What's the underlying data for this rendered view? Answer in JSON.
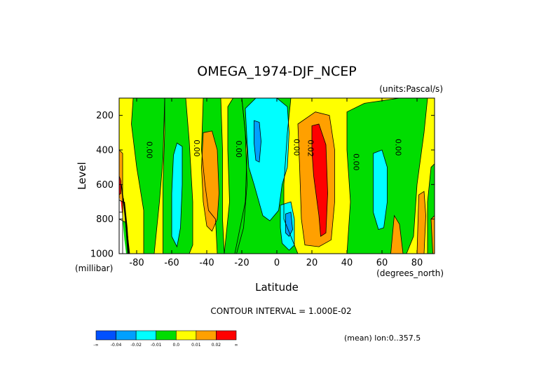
{
  "chart_data": {
    "type": "contour",
    "title": "OMEGA_1974-DJF_NCEP",
    "units_label": "(units:Pascal/s)",
    "xlabel": "Latitude",
    "ylabel": "Level",
    "x_unit_label": "(degrees_north)",
    "y_unit_label": "(millibar)",
    "xlim": [
      -90,
      90
    ],
    "ylim": [
      1000,
      100
    ],
    "x_ticks": [
      -80,
      -60,
      -40,
      -20,
      0,
      20,
      40,
      60,
      80
    ],
    "y_ticks": [
      200,
      400,
      600,
      800,
      1000
    ],
    "contour_interval_text": "CONTOUR INTERVAL = 1.000E-02",
    "mean_text": "(mean) lon:0..357.5",
    "contour_labels": [
      {
        "text": "0.00",
        "x": -73,
        "y": 400
      },
      {
        "text": "0.00",
        "x": -46,
        "y": 390
      },
      {
        "text": "0.00",
        "x": -22,
        "y": 395
      },
      {
        "text": "0.00",
        "x": 11,
        "y": 385
      },
      {
        "text": "0.02",
        "x": 19,
        "y": 390
      },
      {
        "text": "0.00",
        "x": 45,
        "y": 470
      },
      {
        "text": "0.00",
        "x": 69,
        "y": 385
      }
    ],
    "colorbar": {
      "bins": [
        {
          "color": "#0050ff",
          "label": "-∞"
        },
        {
          "color": "#00a0ff",
          "label": "-0.04"
        },
        {
          "color": "#00ffff",
          "label": "-0.02"
        },
        {
          "color": "#00dd00",
          "label": "-0.01"
        },
        {
          "color": "#ffff00",
          "label": "0.0"
        },
        {
          "color": "#ffa000",
          "label": "0.01"
        },
        {
          "color": "#ff0000",
          "label": "0.02"
        }
      ],
      "end_label": "∞"
    },
    "regions": [
      {
        "color": "#ffff00",
        "points": [
          [
            -90,
            100
          ],
          [
            90,
            100
          ],
          [
            90,
            1000
          ],
          [
            -90,
            1000
          ]
        ]
      },
      {
        "color": "#00dd00",
        "points": [
          [
            -82,
            100
          ],
          [
            -64,
            100
          ],
          [
            -65,
            450
          ],
          [
            -67,
            700
          ],
          [
            -69,
            900
          ],
          [
            -70,
            1000
          ],
          [
            -76,
            1000
          ],
          [
            -76,
            750
          ],
          [
            -80,
            500
          ],
          [
            -83,
            250
          ]
        ]
      },
      {
        "color": "#00dd00",
        "points": [
          [
            -90,
            800
          ],
          [
            -86,
            820
          ],
          [
            -84,
            1000
          ],
          [
            -90,
            1000
          ]
        ]
      },
      {
        "color": "#00dd00",
        "points": [
          [
            -42,
            100
          ],
          [
            -32,
            100
          ],
          [
            -31,
            400
          ],
          [
            -31,
            800
          ],
          [
            -30,
            1000
          ],
          [
            -34,
            1000
          ],
          [
            -35,
            800
          ],
          [
            -39,
            750
          ],
          [
            -41,
            600
          ],
          [
            -43,
            400
          ]
        ]
      },
      {
        "color": "#00dd00",
        "points": [
          [
            -64,
            100
          ],
          [
            -52,
            100
          ],
          [
            -50,
            350
          ],
          [
            -48,
            700
          ],
          [
            -48,
            950
          ],
          [
            -50,
            1000
          ],
          [
            -65,
            1000
          ],
          [
            -65,
            600
          ],
          [
            -64,
            300
          ]
        ]
      },
      {
        "color": "#00dd00",
        "points": [
          [
            -28,
            150
          ],
          [
            -25,
            100
          ],
          [
            -20,
            100
          ],
          [
            -18,
            300
          ],
          [
            -17,
            600
          ],
          [
            -19,
            850
          ],
          [
            -23,
            1000
          ],
          [
            -30,
            1000
          ],
          [
            -27,
            700
          ],
          [
            -28,
            400
          ]
        ]
      },
      {
        "color": "#00dd00",
        "points": [
          [
            -20,
            100
          ],
          [
            8,
            100
          ],
          [
            6,
            300
          ],
          [
            4,
            600
          ],
          [
            4,
            800
          ],
          [
            12,
            1000
          ],
          [
            -24,
            1000
          ],
          [
            -18,
            700
          ],
          [
            -17,
            400
          ]
        ]
      },
      {
        "color": "#00dd00",
        "points": [
          [
            40,
            180
          ],
          [
            50,
            130
          ],
          [
            70,
            100
          ],
          [
            86,
            100
          ],
          [
            84,
            300
          ],
          [
            80,
            600
          ],
          [
            78,
            900
          ],
          [
            74,
            1000
          ],
          [
            40,
            1000
          ],
          [
            42,
            700
          ],
          [
            40,
            400
          ]
        ]
      },
      {
        "color": "#00dd00",
        "points": [
          [
            88,
            500
          ],
          [
            90,
            480
          ],
          [
            90,
            1000
          ],
          [
            86,
            1000
          ],
          [
            86,
            700
          ]
        ]
      },
      {
        "color": "#ffa000",
        "points": [
          [
            -42,
            300
          ],
          [
            -37,
            290
          ],
          [
            -34,
            400
          ],
          [
            -33,
            650
          ],
          [
            -34,
            800
          ],
          [
            -37,
            870
          ],
          [
            -40,
            840
          ],
          [
            -42,
            700
          ],
          [
            -43,
            500
          ]
        ]
      },
      {
        "color": "#ffa000",
        "points": [
          [
            12,
            250
          ],
          [
            22,
            180
          ],
          [
            30,
            200
          ],
          [
            33,
            400
          ],
          [
            33,
            700
          ],
          [
            31,
            920
          ],
          [
            24,
            960
          ],
          [
            16,
            950
          ],
          [
            14,
            800
          ],
          [
            13,
            500
          ]
        ]
      },
      {
        "color": "#ffa000",
        "points": [
          [
            67,
            780
          ],
          [
            70,
            830
          ],
          [
            72,
            1000
          ],
          [
            65,
            1000
          ]
        ]
      },
      {
        "color": "#ffa000",
        "points": [
          [
            81,
            660
          ],
          [
            84,
            640
          ],
          [
            85,
            780
          ],
          [
            84,
            1000
          ],
          [
            80,
            1000
          ]
        ]
      },
      {
        "color": "#ffa000",
        "points": [
          [
            88,
            800
          ],
          [
            90,
            780
          ],
          [
            90,
            1000
          ],
          [
            89,
            1000
          ]
        ]
      },
      {
        "color": "#ffa000",
        "points": [
          [
            -90,
            400
          ],
          [
            -88,
            420
          ],
          [
            -88,
            1000
          ],
          [
            -90,
            1000
          ]
        ]
      },
      {
        "color": "#ff0000",
        "points": [
          [
            20,
            260
          ],
          [
            24,
            250
          ],
          [
            28,
            370
          ],
          [
            29,
            650
          ],
          [
            28,
            880
          ],
          [
            25,
            900
          ],
          [
            24,
            780
          ],
          [
            21,
            550
          ],
          [
            20,
            400
          ]
        ]
      },
      {
        "color": "#ff0000",
        "points": [
          [
            -90,
            550
          ],
          [
            -89,
            580
          ],
          [
            -89,
            650
          ],
          [
            -90,
            660
          ]
        ]
      },
      {
        "color": "#ff0000",
        "points": [
          [
            -90,
            690
          ],
          [
            -88,
            700
          ],
          [
            -88,
            760
          ],
          [
            -90,
            760
          ]
        ]
      },
      {
        "color": "#00ffff",
        "points": [
          [
            -57,
            360
          ],
          [
            -54,
            380
          ],
          [
            -54,
            600
          ],
          [
            -55,
            850
          ],
          [
            -57,
            960
          ],
          [
            -60,
            900
          ],
          [
            -60,
            650
          ],
          [
            -59,
            430
          ]
        ]
      },
      {
        "color": "#00ffff",
        "points": [
          [
            -18,
            160
          ],
          [
            -12,
            100
          ],
          [
            0,
            100
          ],
          [
            6,
            150
          ],
          [
            7,
            300
          ],
          [
            6,
            500
          ],
          [
            3,
            600
          ],
          [
            1,
            750
          ],
          [
            -4,
            810
          ],
          [
            -8,
            780
          ],
          [
            -13,
            600
          ],
          [
            -16,
            500
          ],
          [
            -17,
            350
          ]
        ]
      },
      {
        "color": "#00ffff",
        "points": [
          [
            2,
            720
          ],
          [
            8,
            700
          ],
          [
            10,
            800
          ],
          [
            10,
            950
          ],
          [
            7,
            980
          ],
          [
            3,
            940
          ],
          [
            2,
            850
          ]
        ]
      },
      {
        "color": "#00ffff",
        "points": [
          [
            55,
            420
          ],
          [
            60,
            400
          ],
          [
            63,
            500
          ],
          [
            63,
            700
          ],
          [
            61,
            850
          ],
          [
            58,
            860
          ],
          [
            55,
            760
          ],
          [
            55,
            600
          ]
        ]
      },
      {
        "color": "#00a0ff",
        "points": [
          [
            -13,
            230
          ],
          [
            -10,
            240
          ],
          [
            -9,
            350
          ],
          [
            -10,
            470
          ],
          [
            -12,
            460
          ],
          [
            -13,
            360
          ]
        ]
      },
      {
        "color": "#00a0ff",
        "points": [
          [
            5,
            770
          ],
          [
            8,
            760
          ],
          [
            9,
            860
          ],
          [
            7,
            900
          ],
          [
            5,
            880
          ]
        ]
      },
      {
        "color": "#ffffff",
        "points": [
          [
            -90,
            670
          ],
          [
            -89,
            700
          ],
          [
            -88,
            800
          ],
          [
            -87,
            920
          ],
          [
            -86,
            1000
          ],
          [
            -90,
            1000
          ]
        ]
      }
    ],
    "dark_lines": [
      [
        [
          -88.8,
          600
        ],
        [
          -87.5,
          700
        ],
        [
          -86,
          850
        ],
        [
          -85,
          1000
        ]
      ],
      [
        [
          -88.3,
          650
        ],
        [
          -86.8,
          750
        ],
        [
          -85.6,
          900
        ],
        [
          -84.8,
          1000
        ]
      ],
      [
        [
          -87.6,
          680
        ],
        [
          -86.2,
          800
        ],
        [
          -85,
          950
        ],
        [
          -84.5,
          1000
        ]
      ],
      [
        [
          -87,
          700
        ],
        [
          -85.5,
          850
        ],
        [
          -84.5,
          1000
        ]
      ]
    ]
  }
}
